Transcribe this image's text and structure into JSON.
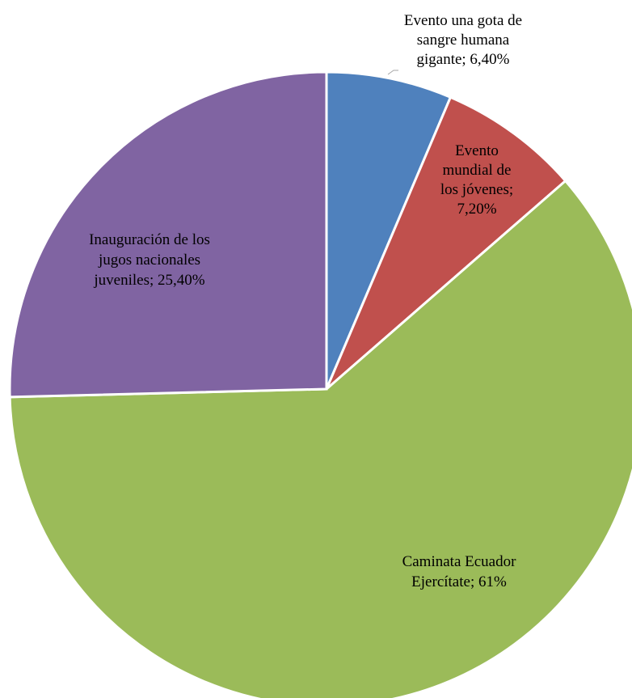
{
  "chart_data": {
    "type": "pie",
    "slices": [
      {
        "label_lines": [
          "Evento una gota de",
          "sangre humana",
          "gigante; 6,40%"
        ],
        "category": "Evento una gota de sangre humana gigante",
        "value": 6.4,
        "value_label": "6,40%",
        "color": "#4F81BD"
      },
      {
        "label_lines": [
          "Evento",
          "mundial de",
          "los jóvenes;",
          "7,20%"
        ],
        "category": "Evento mundial de los jóvenes",
        "value": 7.2,
        "value_label": "7,20%",
        "color": "#C0504D"
      },
      {
        "label_lines": [
          "Caminata Ecuador",
          "Ejercítate; 61%"
        ],
        "category": "Caminata Ecuador Ejercítate",
        "value": 61,
        "value_label": "61%",
        "color": "#9BBB59"
      },
      {
        "label_lines": [
          "Inauguración de los",
          "jugos nacionales",
          "juveniles; 25,40%"
        ],
        "category": "Inauguración de los jugos nacionales juveniles",
        "value": 25.4,
        "value_label": "25,40%",
        "color": "#8064A2"
      }
    ]
  }
}
